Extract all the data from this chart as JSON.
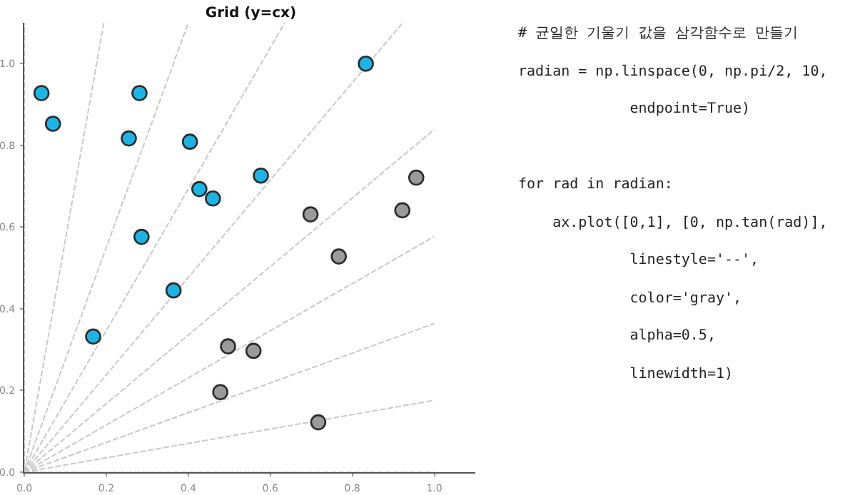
{
  "chart_data": {
    "type": "scatter",
    "title": "Grid (y=cx)",
    "xlim": [
      0,
      1.1
    ],
    "ylim": [
      0,
      1.1
    ],
    "xticks": [
      {
        "value": 0,
        "label": "0.0"
      },
      0.2,
      0.4,
      0.6,
      0.8,
      {
        "value": 1,
        "label": "1.0"
      }
    ],
    "yticks": [
      {
        "value": 0,
        "label": "0.0"
      },
      0.2,
      0.4,
      0.6,
      0.8,
      {
        "value": 1,
        "label": "1.0"
      }
    ],
    "grid": false,
    "marker": "circle",
    "series": [
      {
        "type": "line",
        "line_style": "dashed",
        "marker": "none",
        "color": "#c8c8c8",
        "x": [
          0,
          1
        ],
        "values": [
          0,
          0
        ]
      },
      {
        "type": "line",
        "line_style": "dashed",
        "marker": "none",
        "color": "#c8c8c8",
        "x": [
          0,
          1
        ],
        "values": [
          0,
          0.176
        ]
      },
      {
        "type": "line",
        "line_style": "dashed",
        "marker": "none",
        "color": "#c8c8c8",
        "x": [
          0,
          1
        ],
        "values": [
          0,
          0.364
        ]
      },
      {
        "type": "line",
        "line_style": "dashed",
        "marker": "none",
        "color": "#c8c8c8",
        "x": [
          0,
          1
        ],
        "values": [
          0,
          0.577
        ]
      },
      {
        "type": "line",
        "line_style": "dashed",
        "marker": "none",
        "color": "#c8c8c8",
        "x": [
          0,
          1
        ],
        "values": [
          0,
          0.839
        ]
      },
      {
        "type": "line",
        "line_style": "dashed",
        "marker": "none",
        "color": "#c8c8c8",
        "x": [
          0,
          0.923
        ],
        "values": [
          0,
          1.1
        ]
      },
      {
        "type": "line",
        "line_style": "dashed",
        "marker": "none",
        "color": "#c8c8c8",
        "x": [
          0,
          0.635
        ],
        "values": [
          0,
          1.1
        ]
      },
      {
        "type": "line",
        "line_style": "dashed",
        "marker": "none",
        "color": "#c8c8c8",
        "x": [
          0,
          0.4
        ],
        "values": [
          0,
          1.1
        ]
      },
      {
        "type": "line",
        "line_style": "dashed",
        "marker": "none",
        "color": "#c8c8c8",
        "x": [
          0.194,
          0
        ],
        "values": [
          1.1,
          0
        ]
      },
      {
        "type": "line",
        "line_style": "dashed",
        "marker": "none",
        "color": "#c8c8c8",
        "x": [
          0,
          0
        ],
        "values": [
          0,
          1.1
        ]
      },
      {
        "color": "#1bb4e4",
        "x": [
          0.042,
          0.07,
          0.281,
          0.255,
          0.404,
          0.577,
          0.427,
          0.46,
          0.286,
          0.364,
          0.168,
          0.833
        ],
        "values": [
          0.928,
          0.853,
          0.928,
          0.817,
          0.809,
          0.726,
          0.693,
          0.67,
          0.576,
          0.445,
          0.332,
          1.0
        ]
      },
      {
        "color": "#9a9a9a",
        "x": [
          0.698,
          0.956,
          0.922,
          0.767,
          0.497,
          0.559,
          0.478,
          0.717
        ],
        "values": [
          0.631,
          0.721,
          0.641,
          0.528,
          0.308,
          0.297,
          0.196,
          0.122
        ]
      }
    ],
    "annotations": [
      "# 균일한 기울기 값을 삼각함수로 만들기\nradian = np.linspace(0, np.pi/2, 10,\n             endpoint=True)\n\nfor rad in radian:\n    ax.plot([0,1], [0, np.tan(rad)],\n             linestyle='--',\n             color='gray',\n             alpha=0.5,\n             linewidth=1)"
    ]
  }
}
